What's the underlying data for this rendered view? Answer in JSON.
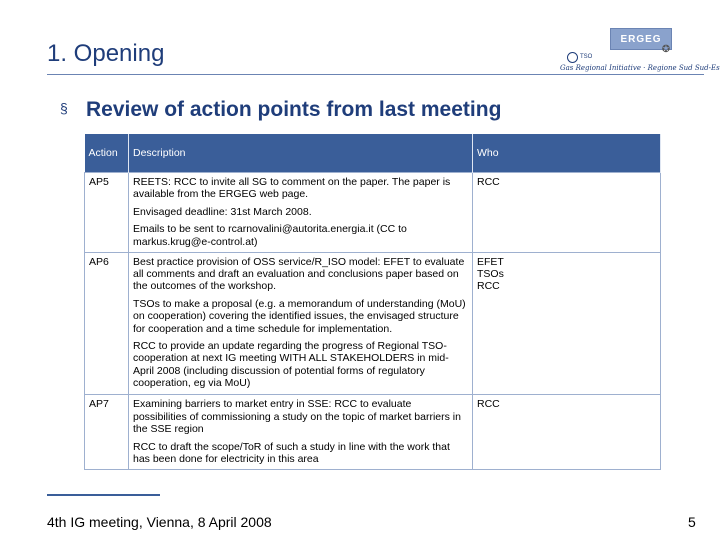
{
  "header": {
    "title": "1. Opening",
    "logo_text": "ERGEG",
    "logo_left_text": "TSO",
    "logo_right_glyph": "✪",
    "tagline": "Gas Regional Initiative · Regione Sud Sud-Est"
  },
  "section": {
    "bullet": "§",
    "heading": "Review of action points from last meeting"
  },
  "table": {
    "headers": {
      "action": "Action",
      "description": "Description",
      "who": "Who"
    },
    "rows": [
      {
        "action": "AP5",
        "paragraphs": [
          "REETS: RCC to invite all SG to comment on the paper. The paper is available from the ERGEG web page.",
          "Envisaged deadline: 31st March 2008.",
          "Emails to be sent to rcarnovalini@autorita.energia.it (CC to markus.krug@e-control.at)"
        ],
        "who": [
          "RCC"
        ]
      },
      {
        "action": "AP6",
        "paragraphs": [
          "Best practice provision of OSS service/R_ISO model: EFET to evaluate all comments and draft an evaluation and conclusions paper based on the outcomes of the workshop.",
          "TSOs to make a proposal (e.g. a memorandum of understanding (MoU) on cooperation) covering the identified issues, the envisaged structure for cooperation and a time schedule for implementation.",
          "RCC to provide an update regarding the progress of Regional TSO-cooperation at next IG meeting WITH ALL STAKEHOLDERS in mid-April 2008 (including discussion of potential forms of regulatory cooperation, eg via MoU)"
        ],
        "who": [
          "EFET",
          "TSOs",
          "RCC"
        ]
      },
      {
        "action": "AP7",
        "paragraphs": [
          "Examining barriers to market entry in SSE: RCC to evaluate possibilities of commissioning a study on the topic of market barriers in the SSE region",
          "RCC to draft the scope/ToR of such a study in line with the work that has been done for electricity in this area"
        ],
        "who": [
          "RCC"
        ]
      }
    ]
  },
  "footer": {
    "text": "4th IG meeting, Vienna, 8 April 2008",
    "page": "5"
  }
}
